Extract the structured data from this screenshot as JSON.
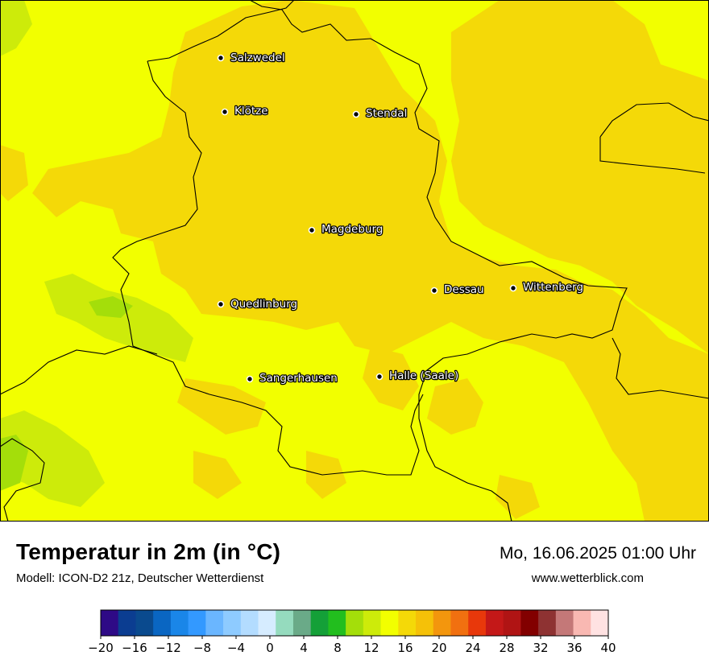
{
  "header": {
    "title": "Temperatur in 2m (in °C)",
    "subtitle": "Modell: ICON-D2 21z, Deutscher Wetterdienst",
    "datetime": "Mo, 16.06.2025 01:00 Uhr",
    "website": "www.wetterblick.com"
  },
  "map": {
    "cities": [
      {
        "name": "Salzwedel"
      },
      {
        "name": "Klötze"
      },
      {
        "name": "Stendal"
      },
      {
        "name": "Magdeburg"
      },
      {
        "name": "Dessau"
      },
      {
        "name": "Wittenberg"
      },
      {
        "name": "Quedlinburg"
      },
      {
        "name": "Sangerhausen"
      },
      {
        "name": "Halle (Saale)"
      }
    ]
  },
  "legend": {
    "min": -20,
    "max": 40,
    "step": 2,
    "tick_labels": [
      "−20",
      "−16",
      "−12",
      "−8",
      "−4",
      "0",
      "4",
      "8",
      "12",
      "16",
      "20",
      "24",
      "28",
      "32",
      "36",
      "40"
    ],
    "colors": [
      "#2e0a86",
      "#0b3d91",
      "#0a4a8e",
      "#0a66c2",
      "#1a86e8",
      "#3399ff",
      "#6ab6ff",
      "#8ecbff",
      "#b3dcff",
      "#d6ecff",
      "#95dbbe",
      "#6aaa88",
      "#14a038",
      "#22be1e",
      "#a4de0a",
      "#cdeb0a",
      "#f2ff00",
      "#f4d908",
      "#f5c108",
      "#f3960d",
      "#f17010",
      "#e8380b",
      "#c41818",
      "#b01414",
      "#820000",
      "#8e3232",
      "#c47878",
      "#f9b8b2",
      "#ffe2e2"
    ]
  }
}
